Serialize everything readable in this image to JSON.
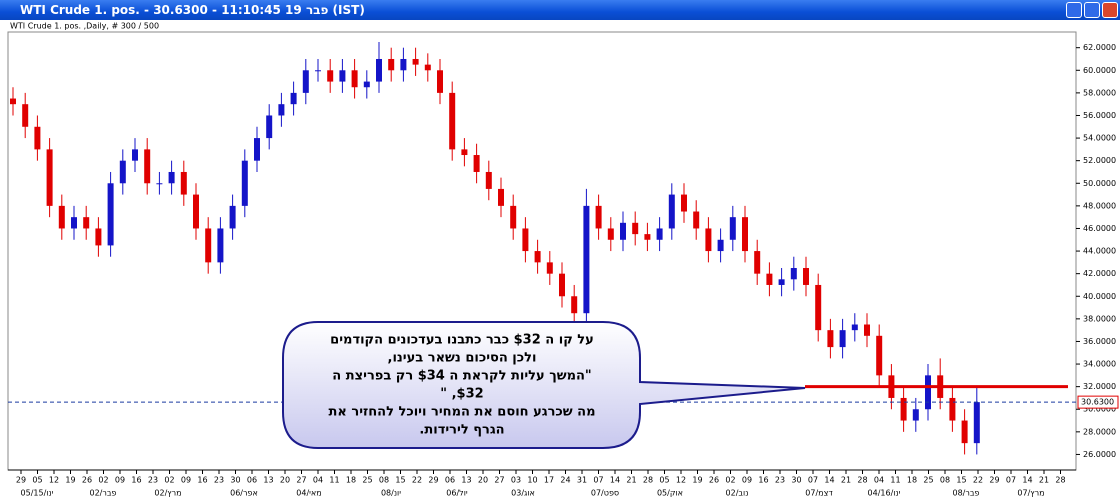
{
  "window_title": "WTI Crude 1. pos. - 30.6300 - 11:10:45  19 פבר (IST)",
  "chart_data": {
    "type": "candlestick",
    "subtitle": "WTI Crude 1. pos. ,Daily, # 300 / 500",
    "up_color": "#1414c8",
    "down_color": "#e00000",
    "open": [
      57.5,
      57,
      55,
      53,
      48,
      46,
      47,
      46,
      44.5,
      50,
      52,
      53,
      50,
      50,
      51,
      49,
      46,
      43,
      46,
      48,
      52,
      54,
      56,
      57,
      58,
      60,
      60,
      59,
      60,
      58.5,
      59,
      61,
      60,
      61,
      60.5,
      60,
      58,
      53,
      52.5,
      51,
      49.5,
      48,
      46,
      44,
      43,
      42,
      40,
      38.5,
      48,
      46,
      45,
      46.5,
      45.5,
      45,
      46,
      49,
      47.5,
      46,
      44,
      45,
      47,
      44,
      42,
      41,
      41.5,
      42.5,
      41,
      37,
      35.5,
      37,
      37.5,
      36.5,
      33,
      31,
      29,
      30,
      33,
      31,
      29,
      27
    ],
    "high": [
      58.5,
      58,
      56,
      54,
      49,
      48,
      48,
      47,
      51,
      53,
      54,
      54,
      51,
      52,
      52,
      50,
      47,
      47,
      49,
      53,
      55,
      57,
      58,
      59,
      61,
      61,
      61,
      61,
      61,
      60,
      62.5,
      62,
      62,
      62,
      61.5,
      61,
      59,
      54,
      53.5,
      52,
      50.5,
      49,
      47,
      45,
      44,
      43,
      41,
      49.5,
      49,
      47,
      47.5,
      47.5,
      46.5,
      47,
      50,
      50,
      48.5,
      47,
      46,
      48,
      48,
      45,
      43,
      42.5,
      43.5,
      43.5,
      42,
      38,
      38,
      38.5,
      38.5,
      37.5,
      34,
      32,
      31,
      34,
      34.5,
      32,
      30,
      32
    ],
    "low": [
      56,
      54,
      52,
      47,
      45,
      45,
      45,
      43.5,
      43.5,
      49,
      51,
      49,
      49,
      49,
      48,
      45,
      42,
      42,
      45,
      47,
      51,
      53,
      55,
      56,
      57,
      59,
      58,
      58,
      57.5,
      57.5,
      58,
      59,
      59,
      59.5,
      59,
      57,
      52,
      51.5,
      50,
      48.5,
      47,
      45,
      43,
      42,
      41,
      39,
      37.5,
      37.5,
      45,
      44,
      44,
      44.5,
      44,
      44,
      45,
      46.5,
      45,
      43,
      43,
      44,
      43,
      41,
      40,
      40,
      40.5,
      40,
      36,
      34.5,
      34.5,
      36,
      35.5,
      32,
      30,
      28,
      28,
      29,
      30,
      28,
      26,
      26
    ],
    "close": [
      57,
      55,
      53,
      48,
      46,
      47,
      46,
      44.5,
      50,
      52,
      53,
      50,
      50,
      51,
      49,
      46,
      43,
      46,
      48,
      52,
      54,
      56,
      57,
      58,
      60,
      60,
      59,
      60,
      58.5,
      59,
      61,
      60,
      61,
      60.5,
      60,
      58,
      53,
      52.5,
      51,
      49.5,
      48,
      46,
      44,
      43,
      42,
      40,
      38.5,
      48,
      46,
      45,
      46.5,
      45.5,
      45,
      46,
      49,
      47.5,
      46,
      44,
      45,
      47,
      44,
      42,
      41,
      41.5,
      42.5,
      41,
      37,
      35.5,
      37,
      37.5,
      36.5,
      33,
      31,
      29,
      30,
      33,
      31,
      29,
      27,
      30.63
    ],
    "ylim": [
      24.8,
      63.3
    ],
    "yticks": [
      {
        "value": 26,
        "label": "26.0000"
      },
      {
        "value": 28,
        "label": "28.0000"
      },
      {
        "value": 30,
        "label": "30.0000"
      },
      {
        "value": 32,
        "label": "32.0000"
      },
      {
        "value": 34,
        "label": "34.0000"
      },
      {
        "value": 36,
        "label": "36.0000"
      },
      {
        "value": 38,
        "label": "38.0000"
      },
      {
        "value": 40,
        "label": "40.0000"
      },
      {
        "value": 42,
        "label": "42.0000"
      },
      {
        "value": 44,
        "label": "44.0000"
      },
      {
        "value": 46,
        "label": "46.0000"
      },
      {
        "value": 48,
        "label": "48.0000"
      },
      {
        "value": 50,
        "label": "50.0000"
      },
      {
        "value": 52,
        "label": "52.0000"
      },
      {
        "value": 54,
        "label": "54.0000"
      },
      {
        "value": 56,
        "label": "56.0000"
      },
      {
        "value": 58,
        "label": "58.0000"
      },
      {
        "value": 60,
        "label": "60.0000"
      },
      {
        "value": 62,
        "label": "62.0000"
      }
    ],
    "current_price": {
      "value": 30.63,
      "label": "30.6300",
      "color": "#1a3aa0"
    },
    "hline": {
      "value": 32,
      "color": "#e00000"
    },
    "day_labels": [
      "29",
      "05",
      "12",
      "19",
      "26",
      "02",
      "09",
      "16",
      "23",
      "02",
      "09",
      "16",
      "23",
      "30",
      "06",
      "13",
      "20",
      "27",
      "04",
      "11",
      "18",
      "25",
      "08",
      "15",
      "22",
      "29",
      "06",
      "13",
      "20",
      "27",
      "03",
      "10",
      "17",
      "24",
      "31",
      "07",
      "14",
      "21",
      "28",
      "05",
      "12",
      "19",
      "26",
      "02",
      "09",
      "16",
      "23",
      "30",
      "07",
      "14",
      "21",
      "28",
      "04",
      "11",
      "18",
      "25",
      "08",
      "15",
      "22",
      "29",
      "07",
      "14",
      "21",
      "28"
    ],
    "month_labels": [
      "05/15/ינו",
      "02/פבר",
      "02/מרץ",
      "06/אפר",
      "04/מאי",
      "08/יונ",
      "06/יול",
      "03/אוג",
      "07/ספט",
      "05/אוק",
      "02/נוב",
      "07/דצמ",
      "04/16/ינו",
      "08/פבר",
      "07/מרץ"
    ],
    "annotation": [
      "על קו ה $32 כבר כתבנו  בעדכונים הקודמים",
      "ולכן  הסיכום נשאר בעינו,",
      "\"המשך עליות לקראת ה $34  רק  בפריצת  ה",
      "$32, \"",
      "מה  שכרגע חוסם את המחיר  ויוכל להחזיר  את",
      "הגרף לירידות."
    ]
  }
}
